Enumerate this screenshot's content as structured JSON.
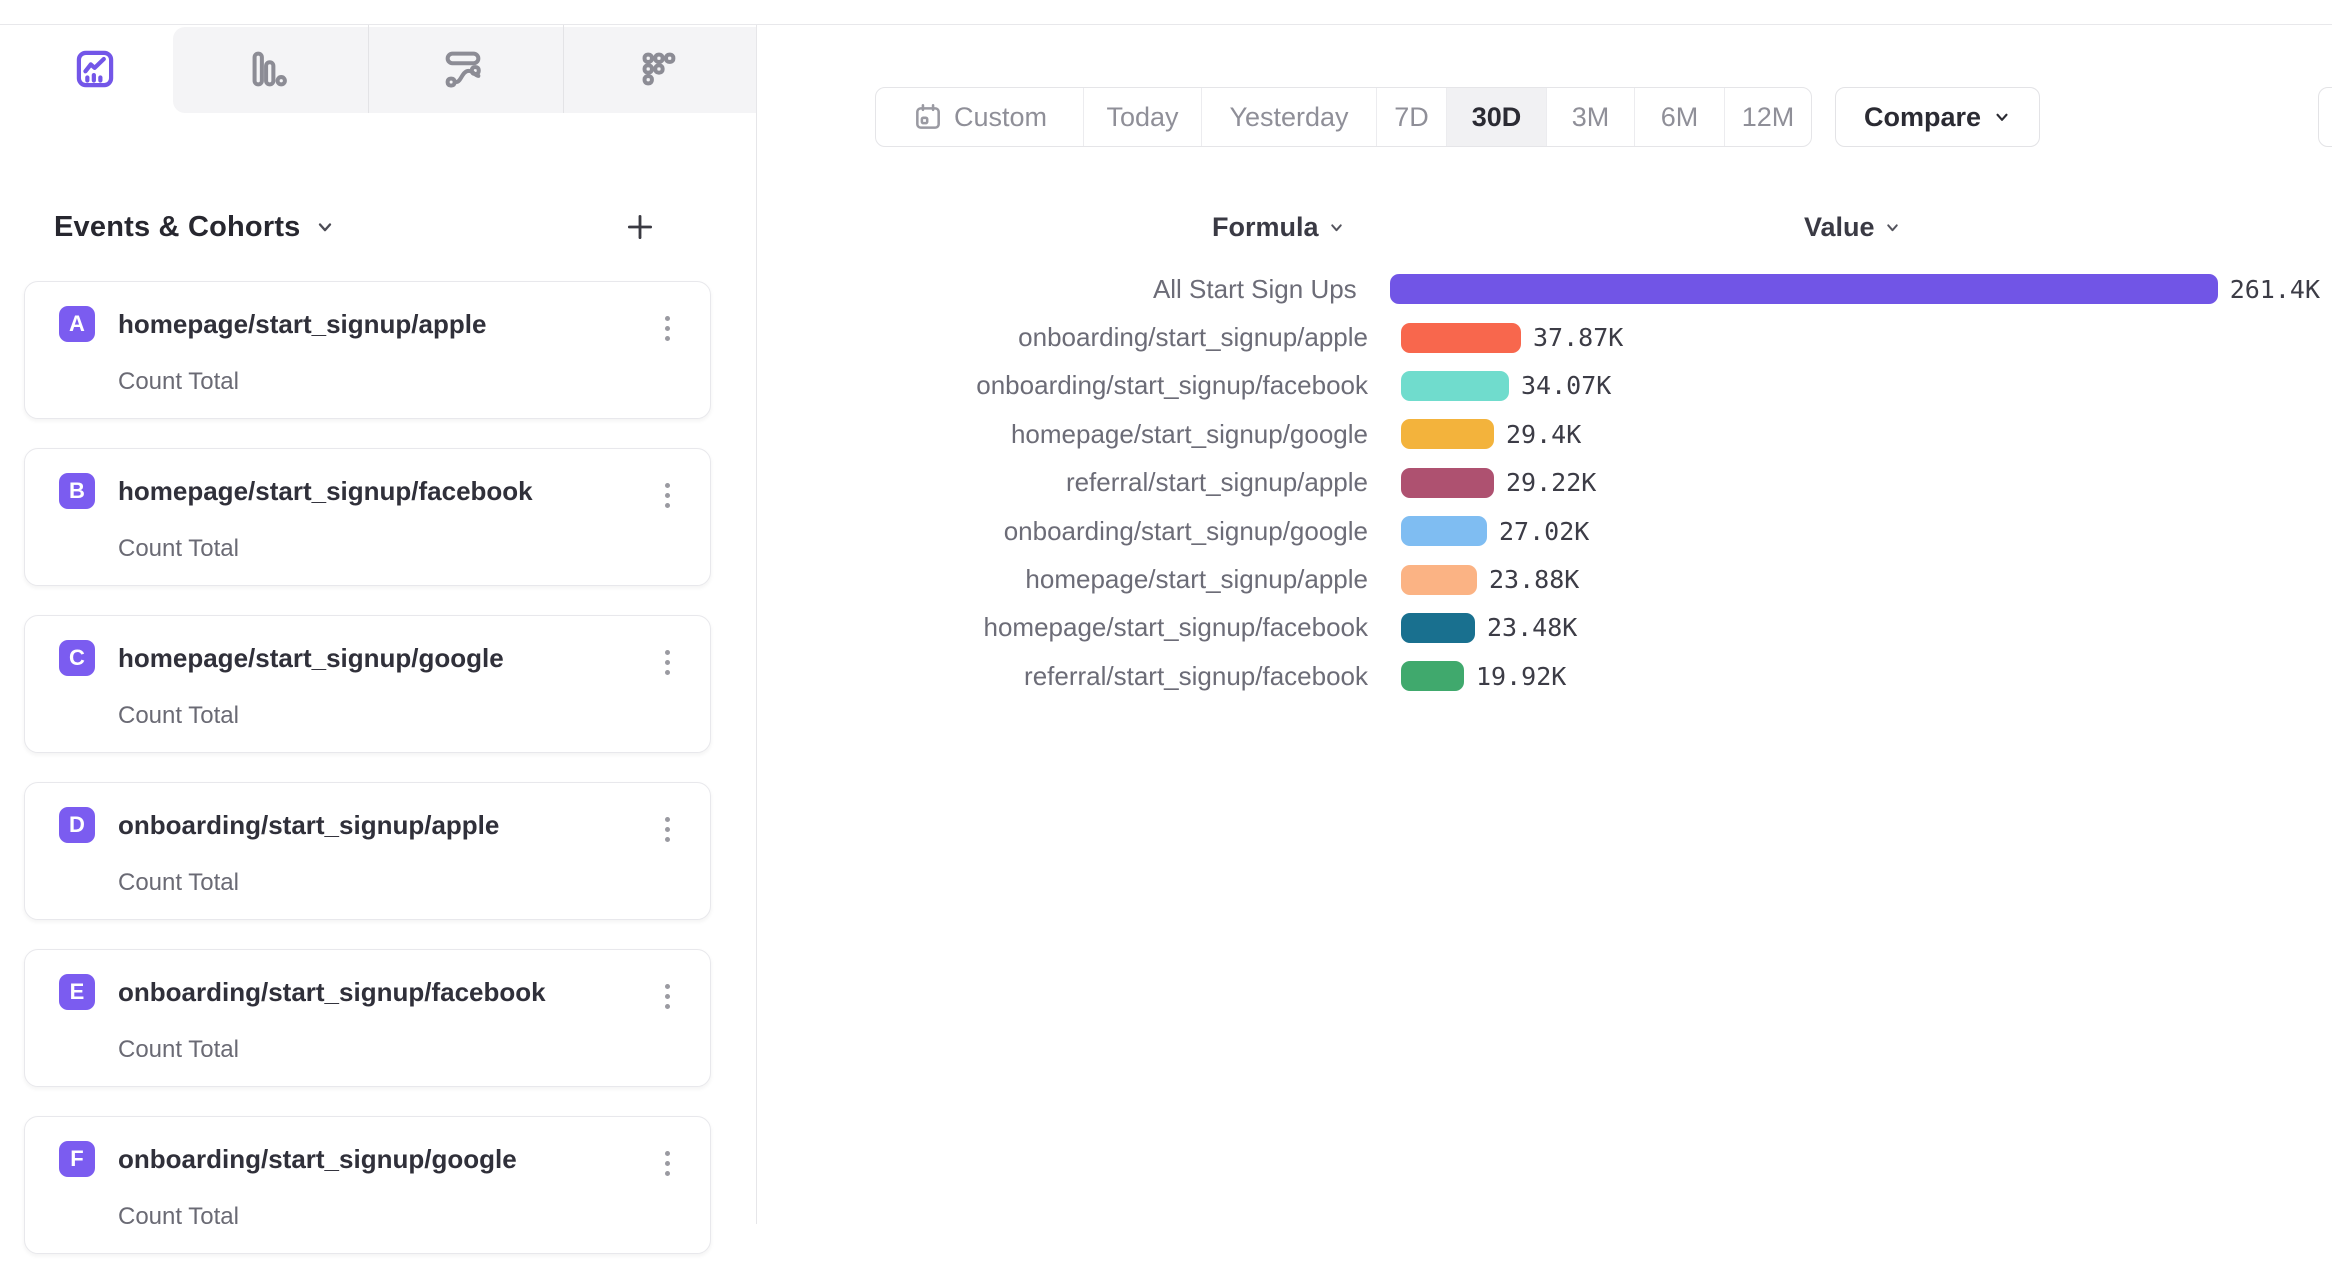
{
  "colors": {
    "accent_purple": "#7356E8",
    "badge_purple": "#7B5CF0",
    "inactive_icon_gray": "#8C8C95",
    "selected_range_bg": "#F1F1F3"
  },
  "view_tabs": [
    {
      "icon": "line-chart-icon",
      "active": true
    },
    {
      "icon": "bar-chart-icon",
      "active": false
    },
    {
      "icon": "flows-icon",
      "active": false
    },
    {
      "icon": "retention-grid-icon",
      "active": false
    }
  ],
  "sidebar": {
    "title": "Events & Cohorts",
    "add_button": "+",
    "cards": [
      {
        "letter": "A",
        "name": "homepage/start_signup/apple",
        "metric": "Count Total"
      },
      {
        "letter": "B",
        "name": "homepage/start_signup/facebook",
        "metric": "Count Total"
      },
      {
        "letter": "C",
        "name": "homepage/start_signup/google",
        "metric": "Count Total"
      },
      {
        "letter": "D",
        "name": "onboarding/start_signup/apple",
        "metric": "Count Total"
      },
      {
        "letter": "E",
        "name": "onboarding/start_signup/facebook",
        "metric": "Count Total"
      },
      {
        "letter": "F",
        "name": "onboarding/start_signup/google",
        "metric": "Count Total"
      }
    ]
  },
  "toolbar": {
    "date_ranges": [
      {
        "label": "Custom",
        "icon": "calendar-icon",
        "selected": false
      },
      {
        "label": "Today",
        "selected": false
      },
      {
        "label": "Yesterday",
        "selected": false
      },
      {
        "label": "7D",
        "selected": false
      },
      {
        "label": "30D",
        "selected": true
      },
      {
        "label": "3M",
        "selected": false
      },
      {
        "label": "6M",
        "selected": false
      },
      {
        "label": "12M",
        "selected": false
      }
    ],
    "compare_label": "Compare"
  },
  "chart_data": {
    "type": "bar",
    "orientation": "horizontal",
    "grid": false,
    "legend": "none",
    "column_headers": [
      "Formula",
      "Value"
    ],
    "max_value": 261400,
    "rows": [
      {
        "label": "All Start Sign Ups",
        "value": 261400,
        "value_label": "261.4K",
        "color": "#7155E6"
      },
      {
        "label": "onboarding/start_signup/apple",
        "value": 37870,
        "value_label": "37.87K",
        "color": "#F8674D"
      },
      {
        "label": "onboarding/start_signup/facebook",
        "value": 34070,
        "value_label": "34.07K",
        "color": "#70DCCD"
      },
      {
        "label": "homepage/start_signup/google",
        "value": 29400,
        "value_label": "29.4K",
        "color": "#F3B33C"
      },
      {
        "label": "referral/start_signup/apple",
        "value": 29220,
        "value_label": "29.22K",
        "color": "#AE5170"
      },
      {
        "label": "onboarding/start_signup/google",
        "value": 27020,
        "value_label": "27.02K",
        "color": "#7FBDF2"
      },
      {
        "label": "homepage/start_signup/apple",
        "value": 23880,
        "value_label": "23.88K",
        "color": "#FBB384"
      },
      {
        "label": "homepage/start_signup/facebook",
        "value": 23480,
        "value_label": "23.48K",
        "color": "#19708F"
      },
      {
        "label": "referral/start_signup/facebook",
        "value": 19920,
        "value_label": "19.92K",
        "color": "#40A96D"
      }
    ]
  }
}
